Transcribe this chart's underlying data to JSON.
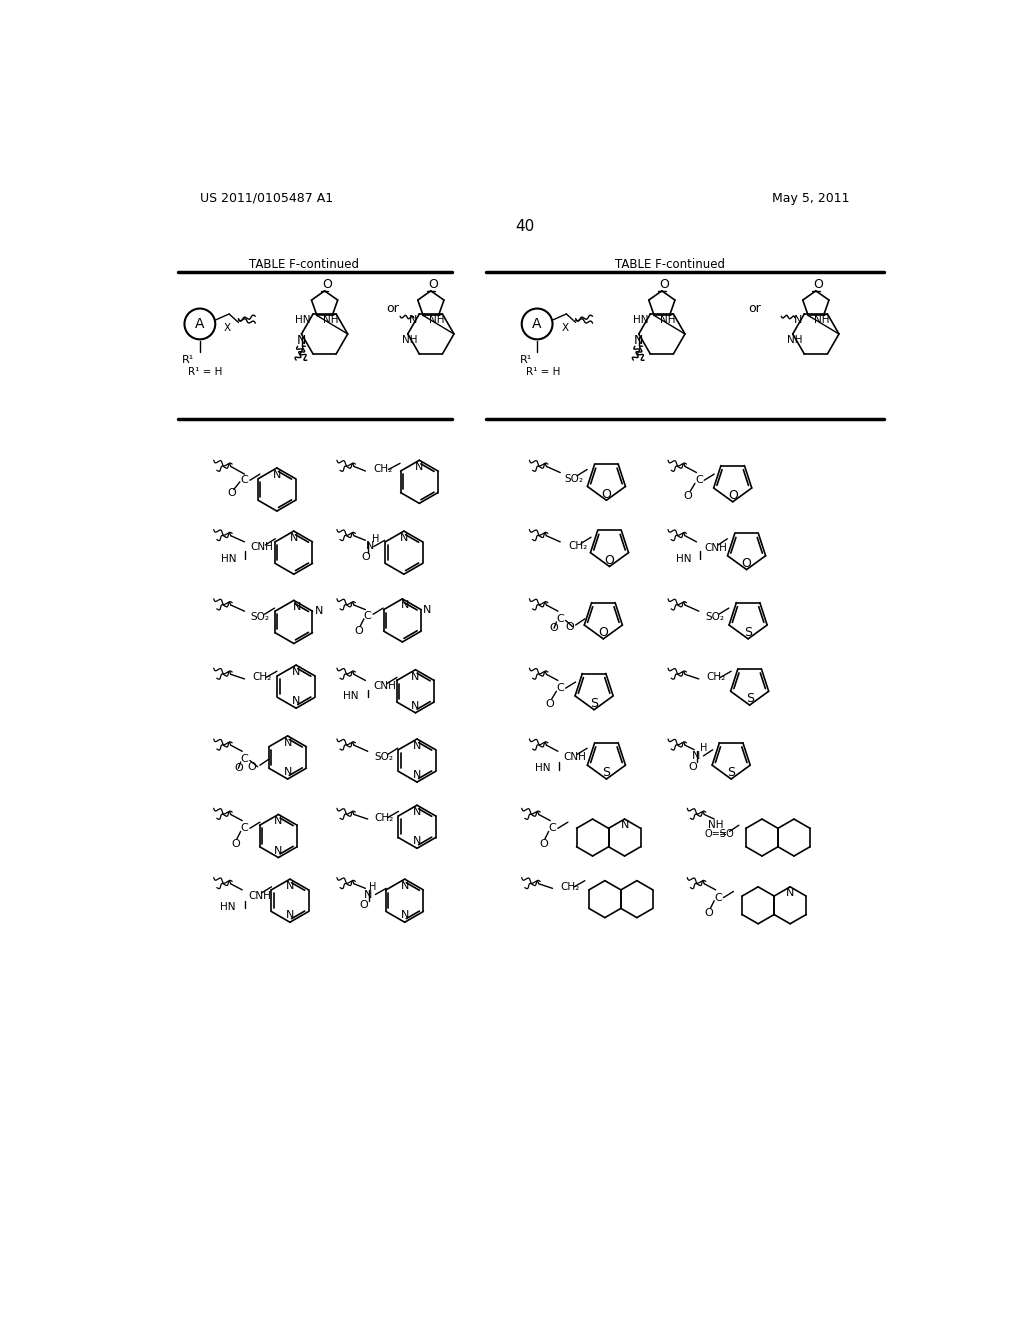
{
  "background_color": "#ffffff",
  "header_left": "US 2011/0105487 A1",
  "header_right": "May 5, 2011",
  "page_number": "40",
  "table_title": "TABLE F-continued"
}
